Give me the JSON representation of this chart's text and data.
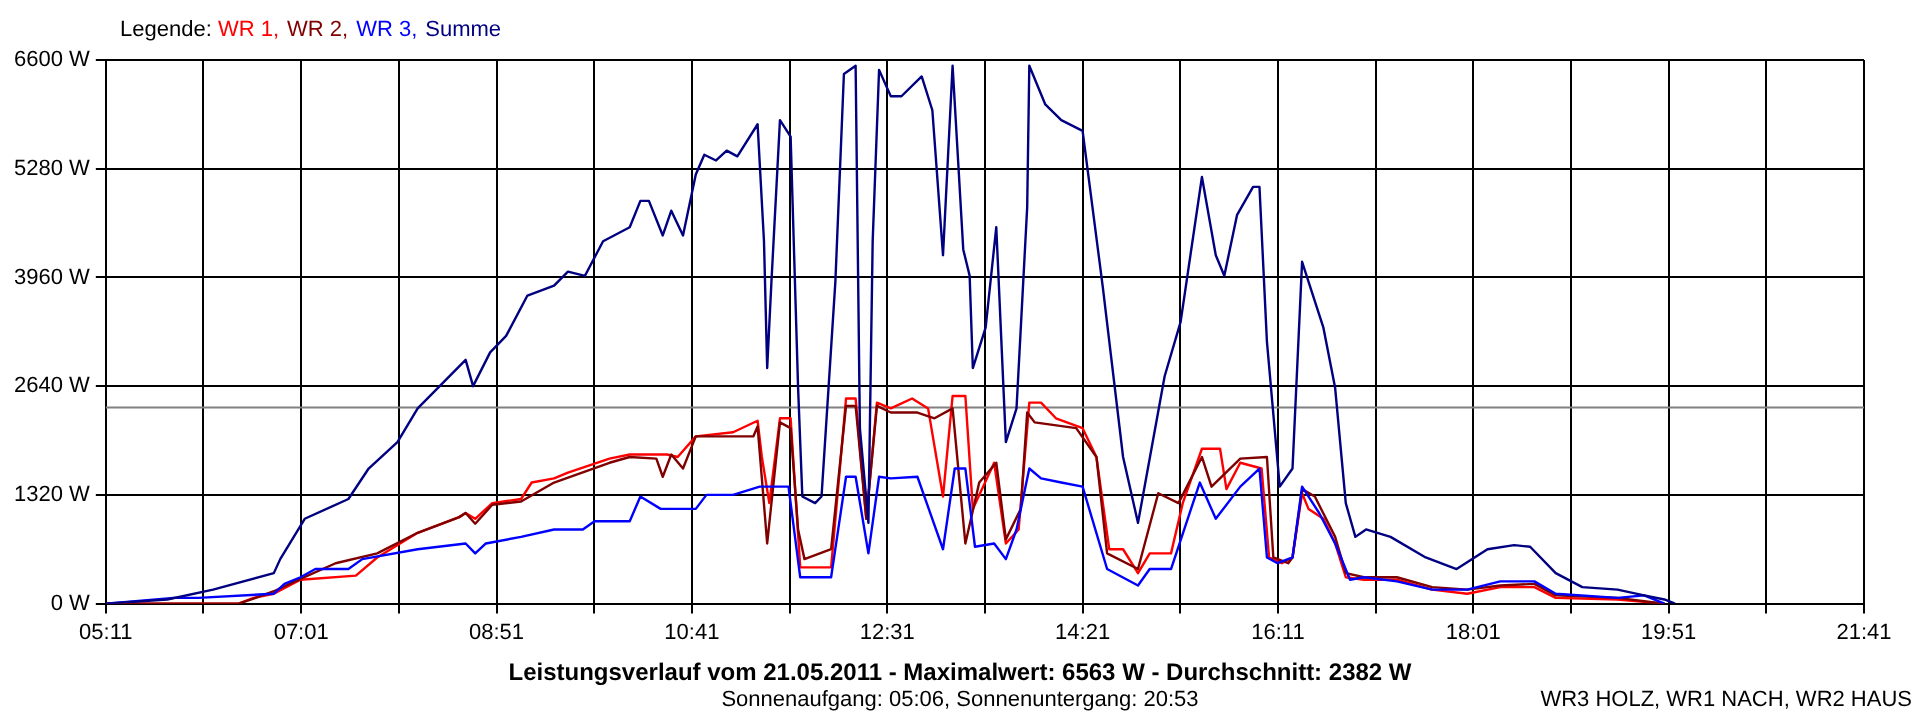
{
  "chart_data": {
    "type": "line",
    "title": "Leistungsverlauf vom 21.05.2011 - Maximalwert: 6563 W - Durchschnitt: 2382 W",
    "subtitle": "Sonnenaufgang: 05:06, Sonnenuntergang: 20:53",
    "legend_title": "Legende:",
    "annotations": [
      "WR3 HOLZ, WR1 NACH, WR2 HAUS"
    ],
    "legend": "top left",
    "grid": true,
    "marker": "none",
    "line_style": "solid",
    "xlim": [
      5.1833,
      21.6833
    ],
    "xticks": [
      {
        "value": 5.1833,
        "label": "05:11"
      },
      {
        "value": 6.1,
        "label": null
      },
      {
        "value": 7.0167,
        "label": "07:01"
      },
      {
        "value": 7.9333,
        "label": null
      },
      {
        "value": 8.85,
        "label": "08:51"
      },
      {
        "value": 9.7667,
        "label": null
      },
      {
        "value": 10.6833,
        "label": "10:41"
      },
      {
        "value": 11.6,
        "label": null
      },
      {
        "value": 12.5167,
        "label": "12:31"
      },
      {
        "value": 13.4333,
        "label": null
      },
      {
        "value": 14.35,
        "label": "14:21"
      },
      {
        "value": 15.2667,
        "label": null
      },
      {
        "value": 16.1833,
        "label": "16:11"
      },
      {
        "value": 17.1,
        "label": null
      },
      {
        "value": 18.0167,
        "label": "18:01"
      },
      {
        "value": 18.9333,
        "label": null
      },
      {
        "value": 19.85,
        "label": "19:51"
      },
      {
        "value": 20.7667,
        "label": null
      },
      {
        "value": 21.6833,
        "label": "21:41"
      }
    ],
    "ylim": [
      0,
      6600
    ],
    "yticks": [
      {
        "value": 0,
        "label": "0 W"
      },
      {
        "value": 1320,
        "label": "1320 W"
      },
      {
        "value": 2640,
        "label": "2640 W"
      },
      {
        "value": 3960,
        "label": "3960 W"
      },
      {
        "value": 5280,
        "label": "5280 W"
      },
      {
        "value": 6600,
        "label": "6600 W"
      }
    ],
    "ref_lines": [
      {
        "axis": "y",
        "value": 2382,
        "color": "#808080"
      }
    ],
    "series": [
      {
        "name": "WR 1,",
        "color": "#ff0000",
        "x": [
          5.1833,
          6.43,
          6.57,
          6.76,
          7.01,
          7.53,
          7.73,
          8.11,
          8.5,
          8.56,
          8.65,
          8.81,
          9.08,
          9.18,
          9.39,
          9.52,
          9.91,
          10.1,
          10.45,
          10.55,
          10.72,
          11.07,
          11.3,
          11.34,
          11.41,
          11.51,
          11.61,
          11.7,
          11.99,
          12.13,
          12.22,
          12.32,
          12.42,
          12.55,
          12.75,
          12.9,
          13.04,
          13.13,
          13.25,
          13.32,
          13.52,
          13.63,
          13.75,
          13.85,
          13.96,
          14.1,
          14.35,
          14.48,
          14.6,
          14.73,
          14.87,
          14.98,
          15.18,
          15.29,
          15.47,
          15.64,
          15.7,
          15.83,
          16.03,
          16.1,
          16.22,
          16.32,
          16.41,
          16.47,
          16.61,
          16.72,
          16.82,
          16.99,
          17.3,
          17.63,
          17.96,
          18.27,
          18.59,
          18.79,
          19.37,
          19.81
        ],
        "values": [
          0,
          0,
          70,
          120,
          290,
          340,
          560,
          860,
          1050,
          1100,
          1030,
          1220,
          1270,
          1470,
          1520,
          1590,
          1760,
          1810,
          1810,
          1780,
          2030,
          2080,
          2220,
          1780,
          1220,
          2250,
          2250,
          440,
          440,
          2490,
          2490,
          1030,
          2440,
          2370,
          2490,
          2370,
          1300,
          2520,
          2520,
          1150,
          1710,
          730,
          900,
          2440,
          2440,
          2250,
          2130,
          1780,
          660,
          660,
          370,
          610,
          610,
          1220,
          1880,
          1880,
          1390,
          1710,
          1640,
          560,
          490,
          560,
          1340,
          1150,
          1030,
          730,
          320,
          290,
          290,
          170,
          120,
          200,
          200,
          70,
          50,
          0
        ]
      },
      {
        "name": "WR 2,",
        "color": "#800000",
        "x": [
          5.1833,
          6.43,
          6.57,
          6.76,
          7.01,
          7.34,
          7.73,
          8.11,
          8.5,
          8.56,
          8.65,
          8.81,
          9.08,
          9.39,
          9.91,
          10.1,
          10.35,
          10.41,
          10.49,
          10.6,
          10.72,
          11.26,
          11.3,
          11.39,
          11.51,
          11.61,
          11.68,
          11.74,
          11.99,
          12.13,
          12.22,
          12.32,
          12.42,
          12.55,
          12.8,
          12.96,
          13.13,
          13.25,
          13.38,
          13.54,
          13.63,
          13.77,
          13.83,
          13.9,
          14.29,
          14.48,
          14.58,
          14.87,
          15.06,
          15.25,
          15.47,
          15.56,
          15.83,
          16.08,
          16.14,
          16.28,
          16.32,
          16.41,
          16.53,
          16.72,
          16.82,
          16.99,
          17.3,
          17.63,
          17.96,
          18.27,
          18.59,
          18.79,
          19.37,
          19.81
        ],
        "values": [
          0,
          0,
          60,
          150,
          300,
          490,
          610,
          860,
          1050,
          1100,
          970,
          1200,
          1240,
          1470,
          1710,
          1780,
          1760,
          1540,
          1810,
          1640,
          2030,
          2030,
          2150,
          730,
          2200,
          2130,
          900,
          540,
          660,
          2400,
          2400,
          1030,
          2400,
          2320,
          2320,
          2250,
          2370,
          730,
          1470,
          1710,
          780,
          1150,
          2320,
          2200,
          2130,
          1780,
          610,
          420,
          1340,
          1220,
          1780,
          1420,
          1760,
          1780,
          560,
          490,
          560,
          1390,
          1300,
          810,
          370,
          320,
          320,
          200,
          170,
          220,
          240,
          100,
          70,
          0
        ]
      },
      {
        "name": "WR 3,",
        "color": "#0000ff",
        "x": [
          5.1833,
          5.82,
          6.05,
          6.76,
          6.86,
          7.01,
          7.15,
          7.46,
          7.59,
          8.11,
          8.56,
          8.65,
          8.75,
          9.08,
          9.39,
          9.66,
          9.77,
          10.1,
          10.2,
          10.39,
          10.72,
          10.82,
          11.07,
          11.32,
          11.59,
          11.7,
          11.99,
          12.13,
          12.22,
          12.34,
          12.44,
          12.55,
          12.8,
          13.04,
          13.15,
          13.25,
          13.34,
          13.52,
          13.63,
          13.73,
          13.85,
          13.96,
          14.15,
          14.35,
          14.58,
          14.87,
          14.98,
          15.18,
          15.45,
          15.6,
          15.83,
          16.01,
          16.08,
          16.18,
          16.32,
          16.41,
          16.57,
          16.72,
          16.86,
          16.99,
          17.3,
          17.63,
          17.96,
          18.27,
          18.59,
          18.79,
          19.37,
          19.62,
          19.81
        ],
        "values": [
          0,
          70,
          70,
          120,
          240,
          320,
          420,
          420,
          540,
          660,
          730,
          610,
          730,
          810,
          900,
          900,
          1000,
          1000,
          1300,
          1150,
          1150,
          1320,
          1320,
          1420,
          1420,
          320,
          320,
          1540,
          1540,
          610,
          1540,
          1520,
          1540,
          660,
          1640,
          1640,
          690,
          730,
          540,
          900,
          1640,
          1520,
          1470,
          1420,
          420,
          220,
          420,
          420,
          1470,
          1030,
          1420,
          1640,
          560,
          490,
          560,
          1420,
          1100,
          730,
          290,
          320,
          270,
          170,
          170,
          270,
          270,
          120,
          70,
          100,
          0
        ]
      },
      {
        "name": "Summe",
        "color": "#000080",
        "x": [
          5.1833,
          5.76,
          6.19,
          6.76,
          6.82,
          7.05,
          7.46,
          7.65,
          7.92,
          8.11,
          8.56,
          8.63,
          8.79,
          8.94,
          9.14,
          9.39,
          9.52,
          9.68,
          9.85,
          10.1,
          10.2,
          10.28,
          10.41,
          10.49,
          10.6,
          10.72,
          10.8,
          10.91,
          11.01,
          11.11,
          11.3,
          11.36,
          11.39,
          11.43,
          11.51,
          11.61,
          11.68,
          11.72,
          11.84,
          11.9,
          12.03,
          12.11,
          12.22,
          12.26,
          12.34,
          12.38,
          12.44,
          12.55,
          12.65,
          12.84,
          12.94,
          13.04,
          13.13,
          13.23,
          13.29,
          13.32,
          13.44,
          13.54,
          13.63,
          13.73,
          13.83,
          13.85,
          14.0,
          14.15,
          14.35,
          14.54,
          14.73,
          14.87,
          15.12,
          15.27,
          15.47,
          15.6,
          15.68,
          15.8,
          15.95,
          16.01,
          16.08,
          16.2,
          16.32,
          16.41,
          16.61,
          16.72,
          16.82,
          16.91,
          17.01,
          17.24,
          17.57,
          17.86,
          18.15,
          18.4,
          18.55,
          18.79,
          19.04,
          19.37,
          19.62,
          19.81,
          19.91
        ],
        "values": [
          0,
          50,
          170,
          370,
          540,
          1030,
          1270,
          1640,
          1960,
          2370,
          2960,
          2640,
          3050,
          3250,
          3740,
          3860,
          4030,
          3980,
          4400,
          4570,
          4890,
          4890,
          4470,
          4770,
          4470,
          5210,
          5450,
          5380,
          5500,
          5430,
          5820,
          4400,
          2860,
          3910,
          5870,
          5670,
          2620,
          1300,
          1220,
          1300,
          3910,
          6430,
          6530,
          2130,
          980,
          4400,
          6480,
          6160,
          6160,
          6400,
          5990,
          4230,
          6530,
          4300,
          3980,
          2860,
          3350,
          4570,
          1960,
          2370,
          4810,
          6530,
          6060,
          5870,
          5740,
          3840,
          1780,
          980,
          2760,
          3420,
          5180,
          4230,
          3980,
          4720,
          5060,
          5060,
          3180,
          1420,
          1640,
          4150,
          3350,
          2620,
          1220,
          810,
          900,
          810,
          560,
          420,
          660,
          710,
          690,
          370,
          200,
          170,
          100,
          50,
          0
        ]
      }
    ]
  }
}
